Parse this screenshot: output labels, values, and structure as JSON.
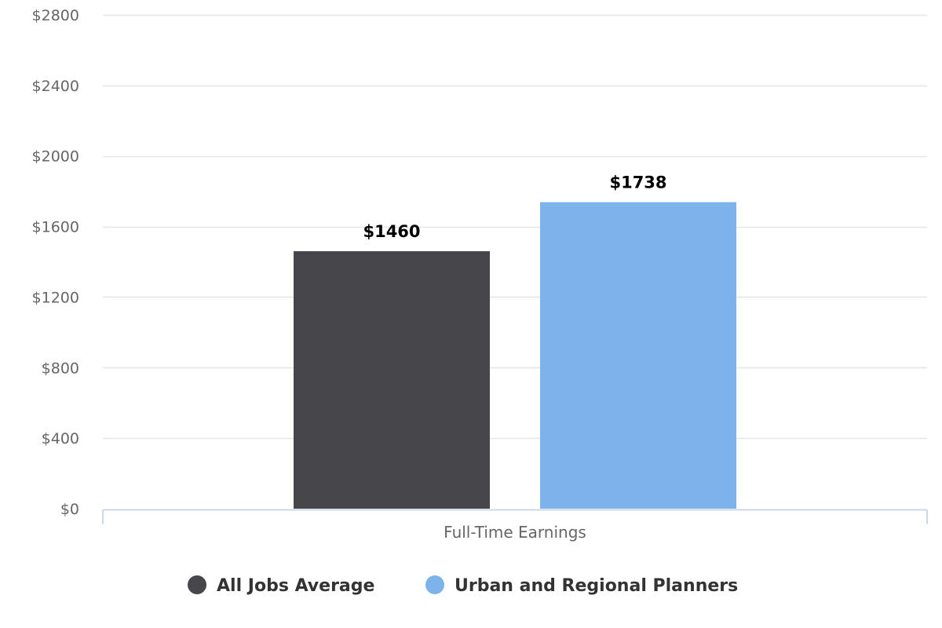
{
  "chart_data": {
    "type": "bar",
    "categories": [
      "Full-Time Earnings"
    ],
    "series": [
      {
        "name": "All Jobs Average",
        "values": [
          1460
        ],
        "label": "$1460",
        "color": "#46464b"
      },
      {
        "name": "Urban and Regional Planners",
        "values": [
          1738
        ],
        "label": "$1738",
        "color": "#7cb3ea"
      }
    ],
    "y_ticks": [
      0,
      400,
      800,
      1200,
      1600,
      2000,
      2400,
      2800
    ],
    "y_tick_labels": [
      "$0",
      "$400",
      "$800",
      "$1200",
      "$1600",
      "$2000",
      "$2400",
      "$2800"
    ],
    "ylim": [
      0,
      2800
    ],
    "grid": true,
    "legend_position": "bottom-center",
    "colors": {
      "gridline": "#e6e6e6",
      "axis": "#ccd6eb"
    }
  }
}
